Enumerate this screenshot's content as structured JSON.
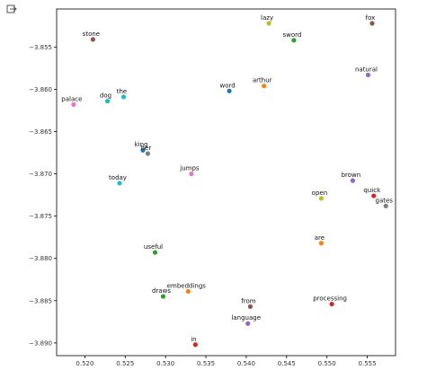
{
  "cell": {
    "icon": "output-expand-icon"
  },
  "chart_data": {
    "type": "scatter",
    "title": "",
    "xlabel": "",
    "ylabel": "",
    "xlim": [
      0.5165,
      0.5585
    ],
    "ylim": [
      -3.8915,
      -3.8505
    ],
    "grid": false,
    "xticks": [
      0.52,
      0.525,
      0.53,
      0.535,
      0.54,
      0.545,
      0.55,
      0.555
    ],
    "xtick_labels": [
      "0.520",
      "0.525",
      "0.530",
      "0.535",
      "0.540",
      "0.545",
      "0.550",
      "0.555"
    ],
    "yticks": [
      -3.855,
      -3.86,
      -3.865,
      -3.87,
      -3.875,
      -3.88,
      -3.885,
      -3.89
    ],
    "ytick_labels": [
      "−3.855",
      "−3.860",
      "−3.865",
      "−3.870",
      "−3.875",
      "−3.880",
      "−3.885",
      "−3.890"
    ],
    "points": [
      {
        "label": "stone",
        "x": 0.521,
        "y": -3.8541,
        "color": "#8c564b"
      },
      {
        "label": "lazy",
        "x": 0.5428,
        "y": -3.8522,
        "color": "#bcbd22"
      },
      {
        "label": "sword",
        "x": 0.5459,
        "y": -3.8542,
        "color": "#2ca02c"
      },
      {
        "label": "fox",
        "x": 0.5556,
        "y": -3.8522,
        "color": "#8c564b"
      },
      {
        "label": "natural",
        "x": 0.5551,
        "y": -3.8583,
        "color": "#9467bd"
      },
      {
        "label": "word",
        "x": 0.5379,
        "y": -3.8602,
        "color": "#1f77b4"
      },
      {
        "label": "arthur",
        "x": 0.5422,
        "y": -3.8596,
        "color": "#ff7f0e"
      },
      {
        "label": "the",
        "x": 0.5248,
        "y": -3.8609,
        "color": "#17becf"
      },
      {
        "label": "dog",
        "x": 0.5228,
        "y": -3.8614,
        "color": "#17becf"
      },
      {
        "label": "palace",
        "x": 0.5186,
        "y": -3.8618,
        "color": "#e377c2"
      },
      {
        "label": "king",
        "x": 0.5272,
        "y": -3.8672,
        "color": "#1f77b4"
      },
      {
        "label": "her",
        "x": 0.5278,
        "y": -3.8676,
        "color": "#7f7f7f"
      },
      {
        "label": "jumps",
        "x": 0.5332,
        "y": -3.87,
        "color": "#e377c2"
      },
      {
        "label": "today",
        "x": 0.5243,
        "y": -3.8711,
        "color": "#17becf"
      },
      {
        "label": "brown",
        "x": 0.5532,
        "y": -3.8708,
        "color": "#9467bd"
      },
      {
        "label": "quick",
        "x": 0.5558,
        "y": -3.8726,
        "color": "#d62728"
      },
      {
        "label": "open",
        "x": 0.5493,
        "y": -3.8729,
        "color": "#bcbd22"
      },
      {
        "label": "gates",
        "x": 0.5573,
        "y": -3.8738,
        "color": "#7f7f7f"
      },
      {
        "label": "are",
        "x": 0.5493,
        "y": -3.8782,
        "color": "#ff7f0e"
      },
      {
        "label": "useful",
        "x": 0.5287,
        "y": -3.8793,
        "color": "#2ca02c"
      },
      {
        "label": "embeddings",
        "x": 0.5328,
        "y": -3.8839,
        "color": "#ff7f0e"
      },
      {
        "label": "draws",
        "x": 0.5297,
        "y": -3.8845,
        "color": "#2ca02c"
      },
      {
        "label": "from",
        "x": 0.5405,
        "y": -3.8857,
        "color": "#8c564b"
      },
      {
        "label": "processing",
        "x": 0.5506,
        "y": -3.8854,
        "color": "#d62728"
      },
      {
        "label": "language",
        "x": 0.5402,
        "y": -3.8877,
        "color": "#9467bd"
      },
      {
        "label": "in",
        "x": 0.5337,
        "y": -3.8902,
        "color": "#d62728"
      }
    ]
  }
}
